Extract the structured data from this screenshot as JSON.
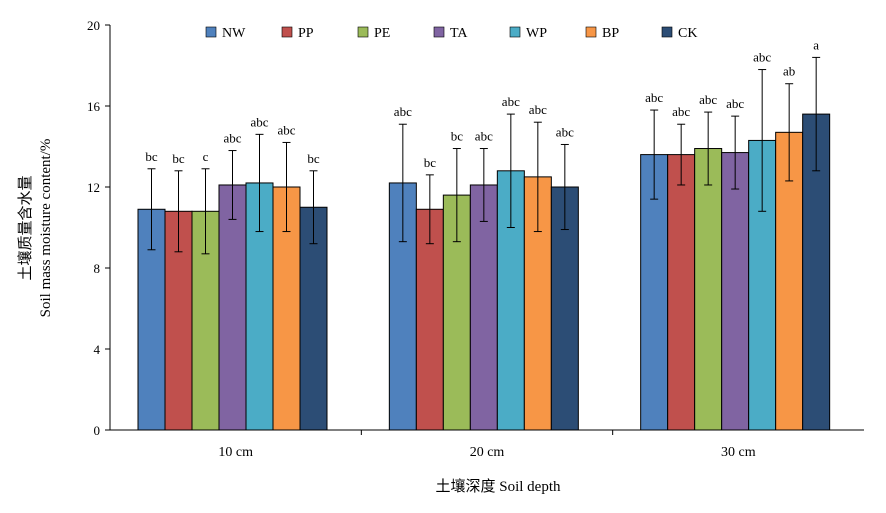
{
  "chart_data": {
    "type": "bar",
    "xlabel": "土壤深度 Soil depth",
    "ylabel_lines": [
      "土壤质量含水量",
      "Soil mass moisture content/%"
    ],
    "ylim": [
      0,
      20
    ],
    "yticks": [
      "0",
      "4",
      "8",
      "12",
      "16",
      "20"
    ],
    "categories": [
      "10 cm",
      "20 cm",
      "30 cm"
    ],
    "legend_placement": "top",
    "grid": false,
    "series": [
      {
        "name": "NW",
        "color": "#4f81bd",
        "values": [
          10.9,
          12.2,
          13.6
        ],
        "errors": [
          2.0,
          2.9,
          2.2
        ],
        "labels": [
          "bc",
          "abc",
          "abc"
        ]
      },
      {
        "name": "PP",
        "color": "#c0504d",
        "values": [
          10.8,
          10.9,
          13.6
        ],
        "errors": [
          2.0,
          1.7,
          1.5
        ],
        "labels": [
          "bc",
          "bc",
          "abc"
        ]
      },
      {
        "name": "PE",
        "color": "#9bbb59",
        "values": [
          10.8,
          11.6,
          13.9
        ],
        "errors": [
          2.1,
          2.3,
          1.8
        ],
        "labels": [
          "c",
          "bc",
          "abc"
        ]
      },
      {
        "name": "TA",
        "color": "#8064a2",
        "values": [
          12.1,
          12.1,
          13.7
        ],
        "errors": [
          1.7,
          1.8,
          1.8
        ],
        "labels": [
          "abc",
          "abc",
          "abc"
        ]
      },
      {
        "name": "WP",
        "color": "#4bacc6",
        "values": [
          12.2,
          12.8,
          14.3
        ],
        "errors": [
          2.4,
          2.8,
          3.5
        ],
        "labels": [
          "abc",
          "abc",
          "abc"
        ]
      },
      {
        "name": "BP",
        "color": "#f79646",
        "values": [
          12.0,
          12.5,
          14.7
        ],
        "errors": [
          2.2,
          2.7,
          2.4
        ],
        "labels": [
          "abc",
          "abc",
          "ab"
        ]
      },
      {
        "name": "CK",
        "color": "#2c4d75",
        "values": [
          11.0,
          12.0,
          15.6
        ],
        "errors": [
          1.8,
          2.1,
          2.8
        ],
        "labels": [
          "bc",
          "abc",
          "a"
        ]
      }
    ]
  }
}
